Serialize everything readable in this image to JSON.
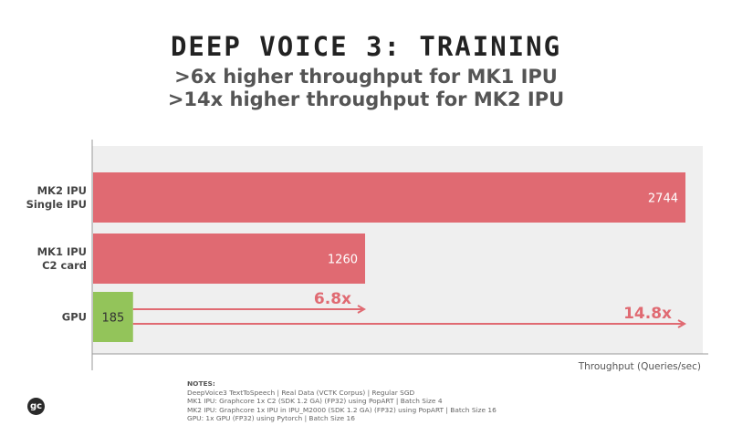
{
  "title": "DEEP VOICE 3: TRAINING",
  "subtitle_lines": [
    ">6x higher throughput for MK1 IPU",
    ">14x higher throughput for MK2 IPU"
  ],
  "colors": {
    "ipu_bar": "#e06a72",
    "gpu_bar": "#93c45a",
    "plot_bg": "#efefef",
    "arrow": "#e06a72"
  },
  "chart_data": {
    "type": "bar",
    "orientation": "horizontal",
    "categories": [
      {
        "lines": [
          "MK2 IPU",
          "Single IPU"
        ],
        "value": 2744,
        "label": "2744",
        "color": "#e06a72"
      },
      {
        "lines": [
          "MK1 IPU",
          "C2 card"
        ],
        "value": 1260,
        "label": "1260",
        "color": "#e06a72"
      },
      {
        "lines": [
          "GPU"
        ],
        "value": 185,
        "label": "185",
        "color": "#93c45a"
      }
    ],
    "xlabel": "Throughput (Queries/sec)",
    "xlim": [
      0,
      2744
    ],
    "annotations": [
      {
        "text": "6.8x",
        "from_value": 185,
        "to_value": 1260
      },
      {
        "text": "14.8x",
        "from_value": 185,
        "to_value": 2744
      }
    ]
  },
  "notes": {
    "title": "NOTES:",
    "lines": [
      "DeepVoice3 TextToSpeech | Real Data (VCTK Corpus) | Regular SGD",
      "MK1 IPU: Graphcore 1x C2 (SDK 1.2 GA) (FP32) using PopART | Batch Size 4",
      "MK2 IPU: Graphcore 1x IPU in IPU_M2000 (SDK 1.2 GA) (FP32) using PopART | Batch Size 16",
      "GPU: 1x GPU (FP32) using Pytorch | Batch Size 16"
    ]
  },
  "logo_text": "gc"
}
